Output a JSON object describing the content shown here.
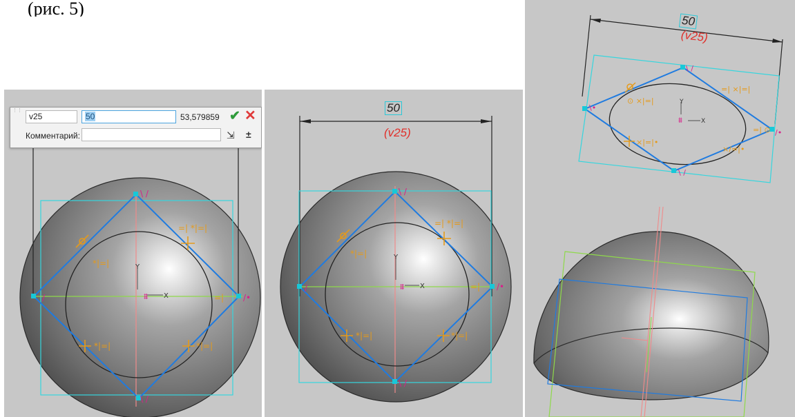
{
  "top_text": "(рис. 5)",
  "dialog": {
    "variable_name": "v25",
    "value_input": "50",
    "measured_value": "53,579859",
    "comment_label": "Комментарий:",
    "comment_value": "",
    "ok_icon": "checkmark-icon",
    "cancel_icon": "close-icon",
    "insert_icon": "insert-variable-icon",
    "tolerance_icon": "plus-minus-icon",
    "tolerance_symbol": "±"
  },
  "panel2": {
    "dim_value": "50",
    "dim_variable": "(v25)"
  },
  "panel3": {
    "dim_value": "50",
    "dim_variable": "(v25)"
  },
  "sketch": {
    "axis_x_label": "X",
    "axis_y_label": "Y"
  },
  "colors": {
    "viewport_bg": "#c5c5c5",
    "sketch_square": "#1f7be0",
    "bounding_box": "#35d6de",
    "constraint_orange": "#e59a1a",
    "constraint_magenta": "#d8208a",
    "dimension_red": "#e0302b",
    "axis_x": "#8ed94a",
    "axis_y": "#f08a8a"
  }
}
